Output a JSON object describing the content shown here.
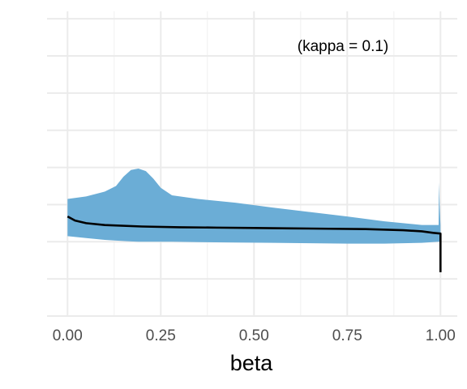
{
  "chart_data": {
    "type": "area",
    "title": "",
    "xlabel": "beta",
    "ylabel": "",
    "annotation": "(kappa = 0.1)",
    "xlim": [
      -0.055,
      1.045
    ],
    "x_ticks": [
      0.0,
      0.25,
      0.5,
      0.75,
      1.0
    ],
    "x_tick_labels": [
      "0.00",
      "0.25",
      "0.50",
      "0.75",
      "1.00"
    ],
    "ylim": [
      0,
      8.2
    ],
    "y_gridlines": [
      0,
      1,
      2,
      3,
      4,
      5,
      6,
      7,
      8
    ],
    "y_tick_labels_shown": false,
    "grid": true,
    "legend": "none",
    "colors": {
      "band": "#6BADD6",
      "line": "#000000",
      "grid_major": "#EBEBEB",
      "grid_minor": "#F2F2F2",
      "tick_text": "#4D4D4D"
    },
    "series": [
      {
        "type": "ribbon",
        "x": [
          0.0,
          0.05,
          0.1,
          0.13,
          0.15,
          0.17,
          0.19,
          0.21,
          0.23,
          0.25,
          0.28,
          0.35,
          0.45,
          0.55,
          0.65,
          0.75,
          0.85,
          0.95,
          0.995,
          0.996,
          0.998,
          1.0
        ],
        "lower": [
          2.15,
          2.1,
          2.05,
          2.03,
          2.02,
          2.01,
          2.0,
          2.0,
          2.0,
          2.0,
          2.0,
          1.99,
          1.98,
          1.97,
          1.96,
          1.95,
          1.95,
          1.97,
          2.0,
          2.0,
          2.0,
          2.0
        ],
        "upper": [
          3.15,
          3.22,
          3.35,
          3.5,
          3.75,
          3.93,
          3.97,
          3.9,
          3.7,
          3.45,
          3.25,
          3.15,
          3.05,
          2.92,
          2.8,
          2.68,
          2.55,
          2.45,
          2.45,
          3.6,
          2.9,
          2.45
        ]
      },
      {
        "type": "line",
        "x": [
          0.0,
          0.02,
          0.05,
          0.1,
          0.2,
          0.3,
          0.4,
          0.5,
          0.6,
          0.7,
          0.8,
          0.9,
          0.95,
          0.98,
          1.0,
          1.0
        ],
        "y": [
          2.68,
          2.57,
          2.5,
          2.45,
          2.41,
          2.39,
          2.38,
          2.37,
          2.36,
          2.35,
          2.34,
          2.31,
          2.28,
          2.24,
          2.22,
          1.18
        ]
      }
    ]
  }
}
